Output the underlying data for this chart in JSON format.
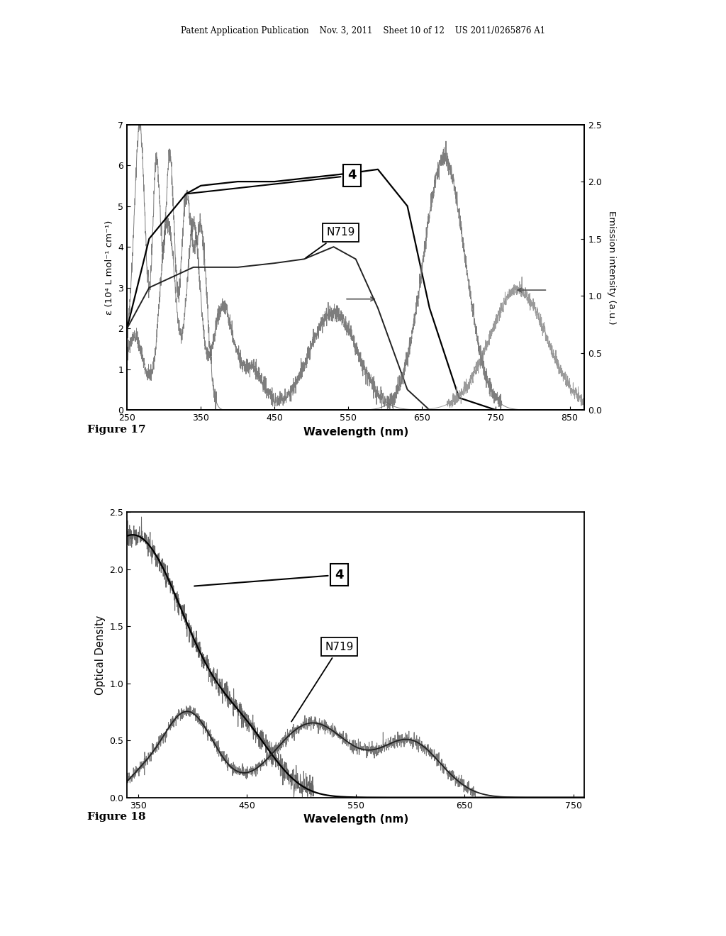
{
  "fig17": {
    "xlabel": "Wavelength (nm)",
    "ylabel_left": "ε (10⁴ L mol⁻¹ cm⁻¹)",
    "ylabel_right": "Emission intensity (a.u.)",
    "xlim": [
      250,
      870
    ],
    "ylim_left": [
      0,
      7
    ],
    "ylim_right": [
      0.0,
      2.5
    ],
    "xticks": [
      250,
      350,
      450,
      550,
      650,
      750,
      850
    ],
    "yticks_left": [
      0,
      1,
      2,
      3,
      4,
      5,
      6,
      7
    ],
    "yticks_right": [
      0.0,
      0.5,
      1.0,
      1.5,
      2.0,
      2.5
    ]
  },
  "fig18": {
    "xlabel": "Wavelength (nm)",
    "ylabel": "Optical Density",
    "xlim": [
      340,
      760
    ],
    "ylim": [
      0.0,
      2.5
    ],
    "xticks": [
      350,
      450,
      550,
      650,
      750
    ],
    "yticks": [
      0.0,
      0.5,
      1.0,
      1.5,
      2.0,
      2.5
    ]
  },
  "header_text": "Patent Application Publication    Nov. 3, 2011    Sheet 10 of 12    US 2011/0265876 A1",
  "figure17_label": "Figure 17",
  "figure18_label": "Figure 18",
  "bg_color": "#ffffff"
}
